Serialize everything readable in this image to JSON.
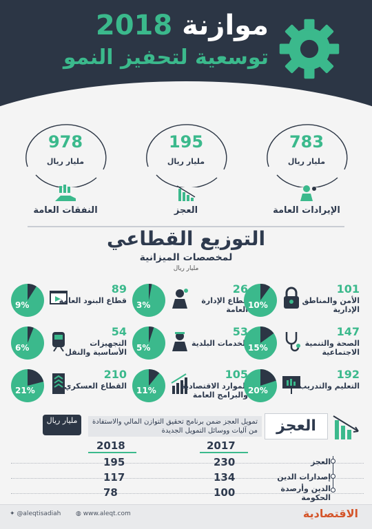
{
  "header": {
    "title_word": "موازنة",
    "title_year": "2018",
    "subtitle": "توسعية لتحفيز النمو"
  },
  "summary": [
    {
      "value": "978",
      "unit": "مليار ريال",
      "label": "النفقات العامة"
    },
    {
      "value": "195",
      "unit": "مليار ريال",
      "label": "العجز"
    },
    {
      "value": "783",
      "unit": "مليار ريال",
      "label": "الإيرادات العامة"
    }
  ],
  "sectors_section": {
    "title": "التوزيع القطاعي",
    "subtitle": "لمخصصات الميزانية",
    "unit": "مليار ريال",
    "percent_sign": "%"
  },
  "sectors": [
    {
      "value": "89",
      "name": "قطاع البنود العامة",
      "percent": "9",
      "icon": "browser-window-icon"
    },
    {
      "value": "26",
      "name": "قطاع الإدارة العامة",
      "percent": "3",
      "icon": "administrator-icon"
    },
    {
      "value": "101",
      "name": "الأمن والمناطق الإدارية",
      "percent": "10",
      "icon": "padlock-icon"
    },
    {
      "value": "54",
      "name": "التجهيزات الأساسية والنقل",
      "percent": "6",
      "icon": "train-icon"
    },
    {
      "value": "53",
      "name": "الخدمات البلدية",
      "percent": "5",
      "icon": "municipal-worker-icon"
    },
    {
      "value": "147",
      "name": "الصحة والتنمية الاجتماعية",
      "percent": "15",
      "icon": "stethoscope-icon"
    },
    {
      "value": "210",
      "name": "القطاع العسكري",
      "percent": "21",
      "icon": "military-rank-icon"
    },
    {
      "value": "105",
      "name": "الموارد الاقتصادية والبرامج العامة",
      "percent": "11",
      "icon": "growth-chart-icon"
    },
    {
      "value": "192",
      "name": "التعليم والتدريب",
      "percent": "20",
      "icon": "whiteboard-icon"
    }
  ],
  "deficit": {
    "title": "العجز",
    "description": "تمويل العجز ضمن برنامج تحقيق التوازن المالي والاستفادة من آليات ووسائل التمويل الجديدة",
    "badge": "مليار ريال",
    "year_2018": "2018",
    "year_2017": "2017",
    "rows": [
      {
        "label": "العجز",
        "v2017": "230",
        "v2018": "195"
      },
      {
        "label": "إصدارات الدين",
        "v2017": "134",
        "v2018": "117"
      },
      {
        "label": "الدين وأرصدة الحكومة",
        "v2017": "100",
        "v2018": "78"
      }
    ]
  },
  "footer": {
    "twitter": "@aleqtisadiah",
    "website": "www.aleqt.com",
    "logo": "الاقتصادية"
  },
  "colors": {
    "accent": "#3bb98c",
    "dark": "#2c3645",
    "brand": "#d4552a"
  }
}
